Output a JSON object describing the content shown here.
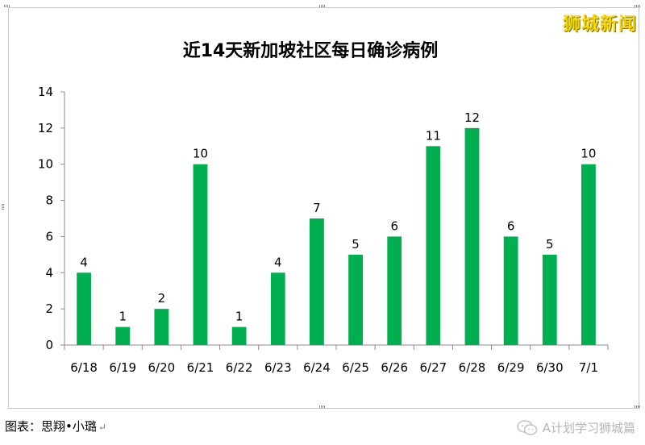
{
  "chart_data": {
    "type": "bar",
    "title": "近14天新加坡社区每日确诊病例",
    "categories": [
      "6/18",
      "6/19",
      "6/20",
      "6/21",
      "6/22",
      "6/23",
      "6/24",
      "6/25",
      "6/26",
      "6/27",
      "6/28",
      "6/29",
      "6/30",
      "7/1"
    ],
    "values": [
      4,
      1,
      2,
      10,
      1,
      4,
      7,
      5,
      6,
      11,
      12,
      6,
      5,
      10
    ],
    "ylim": [
      0,
      14
    ],
    "yticks": [
      0,
      2,
      4,
      6,
      8,
      10,
      12,
      14
    ],
    "bar_color": "#00b050",
    "data_labels": true,
    "grid": false,
    "legend": "none"
  },
  "watermark": "狮城新闻",
  "caption": {
    "text": "图表：思翔•小璐",
    "mark": "↵"
  },
  "account": {
    "label": "A计划学习狮城篇",
    "icon": "wechat-icon"
  }
}
